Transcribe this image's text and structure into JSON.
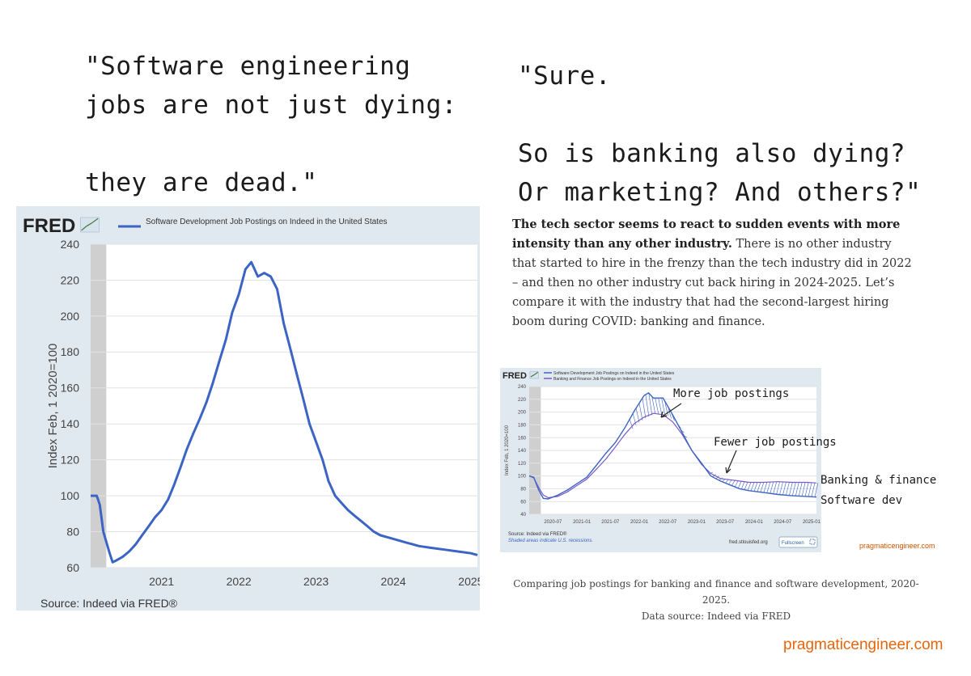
{
  "quotes": {
    "left": [
      "\"Software engineering",
      "jobs are not just dying:",
      "",
      "they are dead.\""
    ],
    "right": [
      "\"Sure.",
      "",
      "So is banking also dying?",
      "Or marketing? And others?\""
    ]
  },
  "article": {
    "bold": "The tech sector seems to react to sudden events with more intensity than any other industry.",
    "rest": " There is no other industry that started to hire in the frenzy than the tech industry did in 2022 – and then no other industry cut back hiring in 2024-2025. Let’s compare it with the industry that had the second-largest hiring boom during COVID: banking and finance."
  },
  "annotations": {
    "more": "More job postings",
    "fewer": "Fewer job postings",
    "banking": "Banking & finance",
    "software": "Software dev"
  },
  "caption": {
    "line1": "Comparing job postings for banking and finance and software development, 2020-2025.",
    "line2": "Data source: Indeed via FRED"
  },
  "watermark": "pragmaticengineer.com",
  "watermark_small": "pragmaticengineer.com",
  "colors": {
    "series_software": "#3b64c4",
    "series_banking": "#7a5ac8",
    "background": "#e1e9f0",
    "watermark": "#e8650a"
  },
  "chart_data": [
    {
      "type": "line",
      "logo": "FRED",
      "title": "Software Development Job Postings on Indeed in the United States",
      "ylabel": "Index Feb, 1 2020=100",
      "source": "Source: Indeed via FRED®",
      "ylim": [
        60,
        240
      ],
      "yticks": [
        60,
        80,
        100,
        120,
        140,
        160,
        180,
        200,
        220,
        240
      ],
      "xlim": [
        "2020-02-01",
        "2025-02-01"
      ],
      "xtick_labels": [
        "2021",
        "2022",
        "2023",
        "2024",
        "2025"
      ],
      "xtick_dates": [
        "2021-01-01",
        "2022-01-01",
        "2023-01-01",
        "2024-01-01",
        "2025-01-01"
      ],
      "recession": [
        "2020-02-01",
        "2020-04-15"
      ],
      "grid": true,
      "series": [
        {
          "name": "Software Development Job Postings on Indeed in the United States",
          "x": [
            "2020-02-01",
            "2020-03-01",
            "2020-03-15",
            "2020-04-01",
            "2020-05-01",
            "2020-05-15",
            "2020-06-01",
            "2020-07-01",
            "2020-08-01",
            "2020-09-01",
            "2020-10-01",
            "2020-11-01",
            "2020-12-01",
            "2021-01-01",
            "2021-02-01",
            "2021-03-01",
            "2021-04-01",
            "2021-05-01",
            "2021-06-01",
            "2021-07-01",
            "2021-08-01",
            "2021-09-01",
            "2021-10-01",
            "2021-11-01",
            "2021-12-01",
            "2022-01-01",
            "2022-02-01",
            "2022-03-01",
            "2022-04-01",
            "2022-05-01",
            "2022-06-01",
            "2022-07-01",
            "2022-08-01",
            "2022-09-01",
            "2022-10-01",
            "2022-11-01",
            "2022-12-01",
            "2023-01-01",
            "2023-02-01",
            "2023-03-01",
            "2023-04-01",
            "2023-05-01",
            "2023-06-01",
            "2023-07-01",
            "2023-08-01",
            "2023-09-01",
            "2023-10-01",
            "2023-11-01",
            "2023-12-01",
            "2024-01-01",
            "2024-03-01",
            "2024-05-01",
            "2024-07-01",
            "2024-09-01",
            "2024-11-01",
            "2025-01-01",
            "2025-02-01"
          ],
          "values": [
            100,
            100,
            95,
            80,
            68,
            63,
            64,
            66,
            69,
            73,
            78,
            83,
            88,
            92,
            98,
            106,
            116,
            126,
            135,
            143,
            152,
            163,
            175,
            187,
            202,
            212,
            226,
            230,
            222,
            224,
            222,
            215,
            196,
            182,
            168,
            154,
            140,
            130,
            120,
            108,
            100,
            96,
            92,
            89,
            86,
            83,
            80,
            78,
            77,
            76,
            74,
            72,
            71,
            70,
            69,
            68,
            67
          ]
        }
      ]
    },
    {
      "type": "line",
      "logo": "FRED",
      "ylabel": "Index Feb, 1 2020=100",
      "source": "Source: Indeed via FRED®",
      "note": "Shaded areas indicate U.S. recessions.",
      "site": "fred.stlouisfed.org",
      "button": "Fullscreen",
      "ylim": [
        40,
        240
      ],
      "yticks": [
        40,
        60,
        80,
        100,
        120,
        140,
        160,
        180,
        200,
        220,
        240
      ],
      "xlim": [
        "2020-02-01",
        "2025-02-01"
      ],
      "xtick_labels": [
        "2020-07",
        "2021-01",
        "2021-07",
        "2022-01",
        "2022-07",
        "2023-01",
        "2023-07",
        "2024-01",
        "2024-07",
        "2025-01"
      ],
      "xtick_dates": [
        "2020-07-01",
        "2021-01-01",
        "2021-07-01",
        "2022-01-01",
        "2022-07-01",
        "2023-01-01",
        "2023-07-01",
        "2024-01-01",
        "2024-07-01",
        "2025-01-01"
      ],
      "recession": [
        "2020-02-01",
        "2020-04-15"
      ],
      "grid": true,
      "series": [
        {
          "name": "Software Development Job Postings on Indeed in the United States",
          "x": [
            "2020-02-01",
            "2020-03-01",
            "2020-04-01",
            "2020-05-01",
            "2020-06-01",
            "2020-08-01",
            "2020-10-01",
            "2020-12-01",
            "2021-02-01",
            "2021-04-01",
            "2021-06-01",
            "2021-08-01",
            "2021-10-01",
            "2021-12-01",
            "2022-02-01",
            "2022-03-01",
            "2022-04-01",
            "2022-06-01",
            "2022-08-01",
            "2022-10-01",
            "2022-12-01",
            "2023-02-01",
            "2023-04-01",
            "2023-06-01",
            "2023-08-01",
            "2023-10-01",
            "2023-12-01",
            "2024-03-01",
            "2024-06-01",
            "2024-09-01",
            "2024-12-01",
            "2025-02-01"
          ],
          "values": [
            100,
            98,
            78,
            65,
            64,
            70,
            78,
            88,
            98,
            116,
            135,
            152,
            175,
            202,
            226,
            230,
            222,
            222,
            196,
            168,
            140,
            120,
            100,
            92,
            86,
            80,
            77,
            74,
            71,
            69,
            68,
            67
          ]
        },
        {
          "name": "Banking and Finance Job Postings on Indeed in the United States",
          "x": [
            "2020-02-01",
            "2020-03-01",
            "2020-04-01",
            "2020-05-01",
            "2020-06-01",
            "2020-08-01",
            "2020-10-01",
            "2020-12-01",
            "2021-02-01",
            "2021-04-01",
            "2021-06-01",
            "2021-08-01",
            "2021-10-01",
            "2021-12-01",
            "2022-02-01",
            "2022-04-01",
            "2022-06-01",
            "2022-08-01",
            "2022-10-01",
            "2022-12-01",
            "2023-02-01",
            "2023-04-01",
            "2023-06-01",
            "2023-08-01",
            "2023-10-01",
            "2023-12-01",
            "2024-03-01",
            "2024-06-01",
            "2024-09-01",
            "2024-12-01",
            "2025-02-01"
          ],
          "values": [
            100,
            97,
            82,
            70,
            66,
            68,
            75,
            85,
            95,
            110,
            126,
            145,
            165,
            182,
            192,
            198,
            196,
            185,
            165,
            140,
            118,
            104,
            96,
            94,
            92,
            90,
            90,
            91,
            90,
            90,
            89
          ]
        }
      ]
    }
  ]
}
